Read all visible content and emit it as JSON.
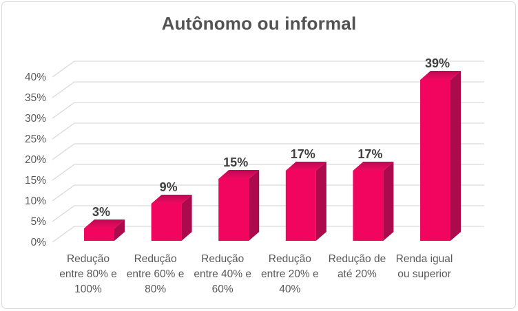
{
  "window": {
    "background": "#FFFFFF",
    "border_color": "#D9D9D9"
  },
  "chart_data": {
    "type": "bar",
    "style": "3d-column",
    "title": "Autônomo ou informal",
    "categories": [
      "Redução entre 80% e 100%",
      "Redução entre 60% e 80%",
      "Redução entre 40% e 60%",
      "Redução entre 20% e 40%",
      "Redução de até 20%",
      "Renda igual ou superior"
    ],
    "category_lines": [
      [
        "Redução",
        "entre 80% e",
        "100%"
      ],
      [
        "Redução",
        "entre 60% e",
        "80%"
      ],
      [
        "Redução",
        "entre 40% e",
        "60%"
      ],
      [
        "Redução",
        "entre 20% e",
        "40%"
      ],
      [
        "Redução de",
        "até 20%"
      ],
      [
        "Renda igual",
        "ou superior"
      ]
    ],
    "values": [
      3,
      9,
      15,
      17,
      17,
      39
    ],
    "data_labels": [
      "3%",
      "9%",
      "15%",
      "17%",
      "17%",
      "39%"
    ],
    "unit": "%",
    "y_axis": {
      "ticks": [
        "0%",
        "5%",
        "10%",
        "15%",
        "20%",
        "25%",
        "30%",
        "35%",
        "40%"
      ],
      "min": 0,
      "max": 40,
      "step": 5
    },
    "grid": true,
    "legend": "none",
    "colors": {
      "bar_front": "#F2055F",
      "bar_side": "#AB0A4D",
      "bar_top_back": "#BE0853",
      "bar_top_front": "#EE0A60",
      "gridline": "#D9D9D9",
      "axis_text": "#595959",
      "data_label_text": "#404040",
      "title_text": "#525252"
    }
  }
}
